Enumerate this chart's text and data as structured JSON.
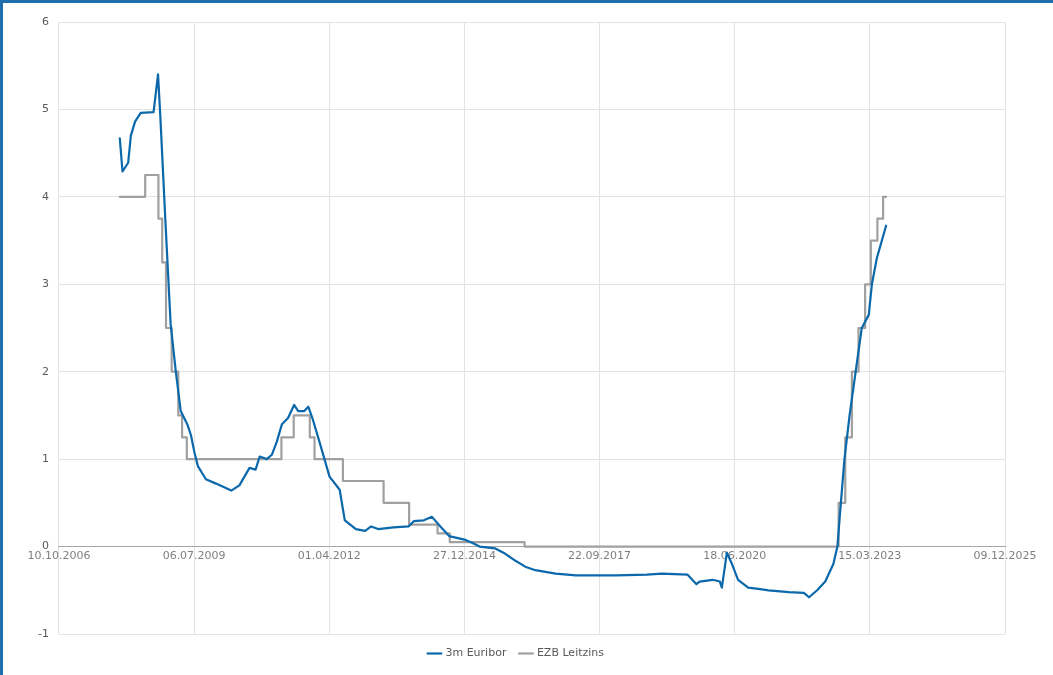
{
  "chart_data": {
    "type": "line",
    "xlim": [
      "2006-10-10",
      "2025-12-09"
    ],
    "xticks": [
      {
        "value": "2006-10-10",
        "label": "10.10.2006"
      },
      {
        "value": "2009-07-06",
        "label": "06.07.2009"
      },
      {
        "value": "2012-04-01",
        "label": "01.04.2012"
      },
      {
        "value": "2014-12-27",
        "label": "27.12.2014"
      },
      {
        "value": "2017-09-22",
        "label": "22.09.2017"
      },
      {
        "value": "2020-06-18",
        "label": "18.06.2020"
      },
      {
        "value": "2023-03-15",
        "label": "15.03.2023"
      },
      {
        "value": "2025-12-09",
        "label": "09.12.2025"
      }
    ],
    "ylim": [
      -1,
      6
    ],
    "yticks": [
      -1,
      0,
      1,
      2,
      3,
      4,
      5,
      6
    ],
    "grid": true,
    "legend": "bottom",
    "marker": "none",
    "line_style": "solid",
    "series": [
      {
        "name": "3m Euribor",
        "type": "line",
        "color": "#0b68ab",
        "x": [
          "2008-01-03",
          "2008-01-23",
          "2008-03-05",
          "2008-03-25",
          "2008-04-25",
          "2008-06-06",
          "2008-09-09",
          "2008-10-12",
          "2008-10-29",
          "2008-12-06",
          "2009-01-13",
          "2009-02-20",
          "2009-03-29",
          "2009-05-19",
          "2009-06-13",
          "2009-07-08",
          "2009-08-03",
          "2009-10-01",
          "2009-12-15",
          "2010-04-07",
          "2010-06-06",
          "2010-08-20",
          "2010-10-04",
          "2010-11-03",
          "2010-12-25",
          "2011-02-01",
          "2011-03-10",
          "2011-04-17",
          "2011-06-01",
          "2011-07-16",
          "2011-08-15",
          "2011-09-29",
          "2011-10-29",
          "2011-11-28",
          "2012-01-19",
          "2012-04-03",
          "2012-06-17",
          "2012-07-25",
          "2012-10-15",
          "2012-12-22",
          "2013-02-05",
          "2013-03-29",
          "2013-07-20",
          "2013-11-09",
          "2013-12-17",
          "2014-03-02",
          "2014-05-01",
          "2014-07-07",
          "2014-09-05",
          "2014-12-27",
          "2015-02-25",
          "2015-04-18",
          "2015-08-09",
          "2015-10-23",
          "2016-01-06",
          "2016-03-21",
          "2016-06-04",
          "2016-11-01",
          "2017-03-31",
          "2018-01-25",
          "2018-09-07",
          "2018-12-28",
          "2019-07-04",
          "2019-09-09",
          "2019-10-02",
          "2020-01-07",
          "2020-02-29",
          "2020-03-15",
          "2020-04-21",
          "2020-05-29",
          "2020-07-13",
          "2020-09-26",
          "2021-02-23",
          "2021-07-23",
          "2021-11-12",
          "2021-12-20",
          "2022-02-18",
          "2022-04-19",
          "2022-06-18",
          "2022-07-18",
          "2022-08-02",
          "2022-09-08",
          "2022-10-16",
          "2022-11-30",
          "2023-01-14",
          "2023-03-07",
          "2023-03-30",
          "2023-05-06",
          "2023-07-13"
        ],
        "values": [
          4.67,
          4.29,
          4.39,
          4.7,
          4.86,
          4.96,
          4.97,
          5.4,
          4.92,
          3.71,
          2.55,
          2.01,
          1.55,
          1.39,
          1.27,
          1.08,
          0.92,
          0.77,
          0.72,
          0.64,
          0.7,
          0.9,
          0.88,
          1.03,
          1.0,
          1.05,
          1.2,
          1.4,
          1.47,
          1.62,
          1.55,
          1.55,
          1.6,
          1.47,
          1.2,
          0.8,
          0.65,
          0.3,
          0.2,
          0.18,
          0.23,
          0.2,
          0.22,
          0.23,
          0.29,
          0.3,
          0.34,
          0.22,
          0.12,
          0.08,
          0.04,
          0.0,
          -0.02,
          -0.08,
          -0.16,
          -0.23,
          -0.27,
          -0.31,
          -0.33,
          -0.33,
          -0.32,
          -0.31,
          -0.32,
          -0.43,
          -0.4,
          -0.38,
          -0.4,
          -0.47,
          -0.07,
          -0.2,
          -0.38,
          -0.47,
          -0.5,
          -0.52,
          -0.53,
          -0.58,
          -0.5,
          -0.4,
          -0.2,
          0.0,
          0.3,
          1.0,
          1.5,
          2.0,
          2.5,
          2.65,
          3.0,
          3.3,
          3.67
        ]
      },
      {
        "name": "EZB Leitzins",
        "type": "step",
        "color": "#a0a0a0",
        "x": [
          "2008-01-03",
          "2008-07-09",
          "2008-10-15",
          "2008-11-12",
          "2008-12-10",
          "2009-01-21",
          "2009-03-11",
          "2009-04-08",
          "2009-05-13",
          "2011-04-13",
          "2011-07-13",
          "2011-11-09",
          "2011-12-14",
          "2012-07-11",
          "2013-05-08",
          "2013-11-13",
          "2014-06-11",
          "2014-09-10",
          "2016-03-16",
          "2022-07-27",
          "2022-09-14",
          "2022-11-02",
          "2022-12-21",
          "2023-02-08",
          "2023-03-22",
          "2023-05-10",
          "2023-06-21",
          "2023-07-13"
        ],
        "values": [
          4.0,
          4.25,
          3.75,
          3.25,
          2.5,
          2.0,
          1.5,
          1.25,
          1.0,
          1.25,
          1.5,
          1.25,
          1.0,
          0.75,
          0.5,
          0.25,
          0.15,
          0.05,
          0.0,
          0.5,
          1.25,
          2.0,
          2.5,
          3.0,
          3.5,
          3.75,
          4.0,
          4.0
        ]
      }
    ]
  }
}
